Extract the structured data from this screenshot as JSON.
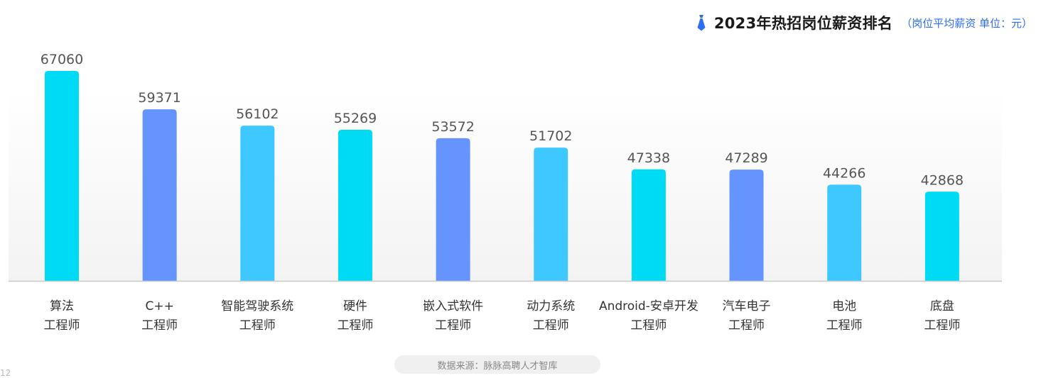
{
  "page": {
    "title": "2023年热招岗位薪资排名",
    "subtitle": "（岗位平均薪资  单位：元）",
    "source": "数据来源：脉脉高聘人才智库",
    "page_number": "12",
    "icon": "tie-icon"
  },
  "colors": {
    "cyan": "#00dbf5",
    "blue": "#6694ff",
    "light_blue": "#3fc8ff",
    "label_text": "#333333",
    "value_text": "#555555",
    "baseline": "#c8c8c8",
    "title_accent": "#2f6df6"
  },
  "chart_data": {
    "type": "bar",
    "title": "2023年热招岗位薪资排名",
    "subtitle": "（岗位平均薪资  单位：元）",
    "categories": [
      [
        "算法",
        "工程师"
      ],
      [
        "C++",
        "工程师"
      ],
      [
        "智能驾驶系统",
        "工程师"
      ],
      [
        "硬件",
        "工程师"
      ],
      [
        "嵌入式软件",
        "工程师"
      ],
      [
        "动力系统",
        "工程师"
      ],
      [
        "Android-安卓开发",
        "工程师"
      ],
      [
        "汽车电子",
        "工程师"
      ],
      [
        "电池",
        "工程师"
      ],
      [
        "底盘",
        "工程师"
      ]
    ],
    "values": [
      67060,
      59371,
      56102,
      55269,
      53572,
      51702,
      47338,
      47289,
      44266,
      42868
    ],
    "bar_colors": [
      "#00dbf5",
      "#6694ff",
      "#3fc8ff",
      "#00dbf5",
      "#6694ff",
      "#3fc8ff",
      "#00dbf5",
      "#6694ff",
      "#3fc8ff",
      "#00dbf5"
    ],
    "ylim": [
      25000,
      67060
    ],
    "grid": false,
    "legend": "none"
  }
}
